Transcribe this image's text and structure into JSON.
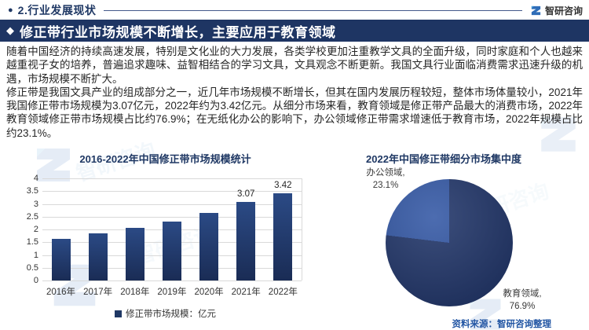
{
  "page": {
    "section_header": "2.行业发展现状",
    "brand": "智研咨询",
    "banner_title": "修正带行业市场规模不断增长，主要应用于教育领域",
    "paragraphs": [
      "随着中国经济的持续高速发展，特别是文化业的大力发展，各类学校更加注重教学文具的全面升级，同时家庭和个人也越来越重视子女的培养，普遍追求趣味、益智相结合的学习文具，文具观念不断更新。我国文具行业面临消费需求迅速升级的机遇，市场规模不断扩大。",
      "修正带是我国文具产业的组成部分之一，近几年市场规模不断增长，但其在国内发展历程较短，整体市场体量较小，2021年我国修正带市场规模为3.07亿元，2022年约为3.42亿元。从细分市场来看，教育领域是修正带产品最大的消费市场，2022年教育领域修正带市场规模占比约76.9%；在无纸化办公的影响下，办公领域修正带需求增速低于教育市场，2022年规模占比约23.1%。"
    ],
    "source_note": "资料来源：智研咨询整理",
    "watermark_text": "智研咨询"
  },
  "icons": {
    "bullet": "●",
    "diamond": "◆"
  },
  "colors": {
    "navy": "#1f3864",
    "banner_bg": "#1e3563",
    "bar_top": "#2b4a85",
    "bar_bottom": "#1a2c55",
    "grid_line": "#d9d9d9",
    "text_dark": "#262626",
    "source_blue": "#2155a3",
    "logo_blue": "#2f6db8",
    "logo_light": "#4aa3dc",
    "watermark": "#9dc3e6"
  },
  "chart_data": [
    {
      "type": "bar",
      "title": "2016-2022年中国修正带市场规模统计",
      "categories": [
        "2016年",
        "2017年",
        "2018年",
        "2019年",
        "2020年",
        "2021年",
        "2022年"
      ],
      "values": [
        1.63,
        1.84,
        2.05,
        2.3,
        2.65,
        3.07,
        3.42
      ],
      "value_labels": [
        "",
        "",
        "",
        "",
        "",
        "3.07",
        "3.42"
      ],
      "legend": "修正带市场规模：亿元",
      "ylim": [
        0,
        4
      ],
      "ytick_step": 0.5,
      "yticks": [
        "4",
        "3.5",
        "3",
        "2.5",
        "2",
        "1.5",
        "1",
        "0.5",
        "0"
      ],
      "grid": true,
      "legend_position": "bottom",
      "bar_color": "#1f3864"
    },
    {
      "type": "pie",
      "title": "2022年中国修正带细分市场集中度",
      "slices": [
        {
          "label": "教育领域",
          "label_display": "教育领域,",
          "pct_label": "76.9%",
          "value": 76.9,
          "color": "#1c3166"
        },
        {
          "label": "办公领域",
          "label_display": "办公领域,",
          "pct_label": "23.1%",
          "value": 23.1,
          "color": "#2f54a3"
        }
      ],
      "start_angle_deg": 0,
      "direction": "clockwise"
    }
  ]
}
